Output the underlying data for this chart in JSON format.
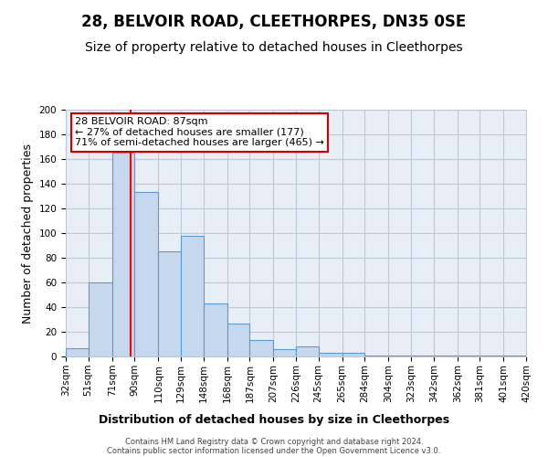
{
  "title": "28, BELVOIR ROAD, CLEETHORPES, DN35 0SE",
  "subtitle": "Size of property relative to detached houses in Cleethorpes",
  "xlabel": "Distribution of detached houses by size in Cleethorpes",
  "ylabel": "Number of detached properties",
  "footer_line1": "Contains HM Land Registry data © Crown copyright and database right 2024.",
  "footer_line2": "Contains public sector information licensed under the Open Government Licence v3.0.",
  "bin_labels": [
    "32sqm",
    "51sqm",
    "71sqm",
    "90sqm",
    "110sqm",
    "129sqm",
    "148sqm",
    "168sqm",
    "187sqm",
    "207sqm",
    "226sqm",
    "245sqm",
    "265sqm",
    "284sqm",
    "304sqm",
    "323sqm",
    "342sqm",
    "362sqm",
    "381sqm",
    "401sqm",
    "420sqm"
  ],
  "bar_values": [
    7,
    60,
    165,
    133,
    85,
    98,
    43,
    27,
    13,
    6,
    8,
    3,
    3,
    1,
    1,
    1,
    1,
    1,
    1,
    1,
    2
  ],
  "bar_color": "#c5d8ed",
  "bar_edge_color": "#5b9bd5",
  "property_value": 87,
  "annotation_title": "28 BELVOIR ROAD: 87sqm",
  "annotation_line1": "← 27% of detached houses are smaller (177)",
  "annotation_line2": "71% of semi-detached houses are larger (465) →",
  "annotation_box_color": "#ffffff",
  "annotation_box_edge": "#cc0000",
  "ylim": [
    0,
    200
  ],
  "yticks": [
    0,
    20,
    40,
    60,
    80,
    100,
    120,
    140,
    160,
    180,
    200
  ],
  "bin_edges": [
    32,
    51,
    71,
    90,
    110,
    129,
    148,
    168,
    187,
    207,
    226,
    245,
    265,
    284,
    304,
    323,
    342,
    362,
    381,
    401,
    420
  ],
  "background_color": "#ffffff",
  "ax_background_color": "#e8eef5",
  "grid_color": "#c0c8d8",
  "title_fontsize": 12,
  "subtitle_fontsize": 10,
  "axis_label_fontsize": 9,
  "tick_fontsize": 7.5,
  "annotation_fontsize": 8
}
